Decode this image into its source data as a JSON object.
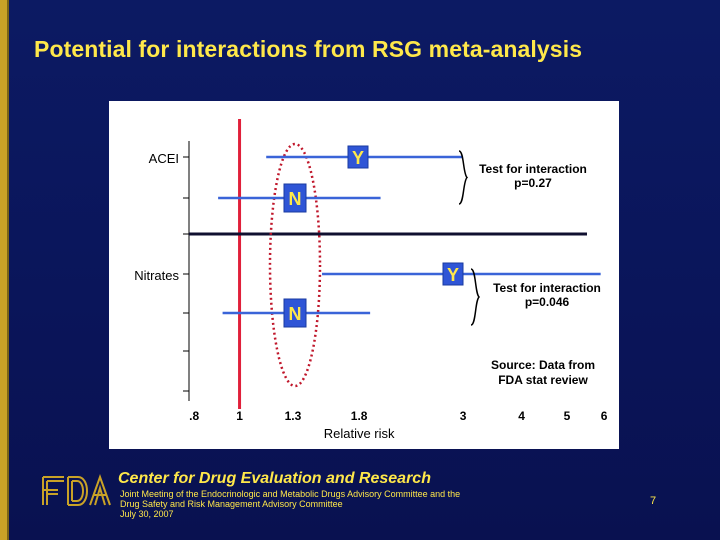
{
  "slide": {
    "title": "Potential for interactions from RSG meta-analysis",
    "page_number": "7"
  },
  "footer": {
    "center_name": "Center for Drug Evaluation and Research",
    "meeting_line1": "Joint Meeting of the Endocrinologic and Metabolic Drugs Advisory Committee and the",
    "meeting_line2": "Drug Safety and Risk Management Advisory Committee",
    "meeting_date": "July 30, 2007"
  },
  "logo": {
    "icon": "fda-logo-icon",
    "text": "FDA"
  },
  "colors": {
    "background": "#0c1a63",
    "title": "#ffe84a",
    "accent_bar": "#c9a227",
    "ci_line": "#3a64d8",
    "reference_line": "#e0203a",
    "highlight_ellipse": "#c0172b",
    "marker_fill": "#2f55d6"
  },
  "chart_data": {
    "type": "forest",
    "xlabel": "Relative risk",
    "x_scale": "log",
    "xlim": [
      0.78,
      6.3
    ],
    "x_ticks": [
      0.8,
      1,
      1.3,
      1.8,
      3,
      4,
      5,
      6
    ],
    "x_tick_labels": [
      ".8",
      "1",
      "1.3",
      "1.8",
      "3",
      "4",
      "5",
      "6"
    ],
    "reference_line": 1,
    "groups": [
      {
        "label": "ACEI",
        "rows": [
          {
            "marker": "Y",
            "ci": [
              1.14,
              3.0
            ]
          },
          {
            "marker": "N",
            "ci": [
              0.9,
              2.0
            ]
          }
        ],
        "annotation": [
          "Test for interaction",
          "p=0.27"
        ]
      },
      {
        "label": "Nitrates",
        "rows": [
          {
            "marker": "Y",
            "ci": [
              1.5,
              5.9
            ]
          },
          {
            "marker": "N",
            "ci": [
              0.92,
              1.9
            ]
          }
        ],
        "annotation": [
          "Test for interaction",
          "p=0.046"
        ]
      }
    ],
    "source_note": [
      "Source: Data from",
      "FDA stat review"
    ]
  }
}
